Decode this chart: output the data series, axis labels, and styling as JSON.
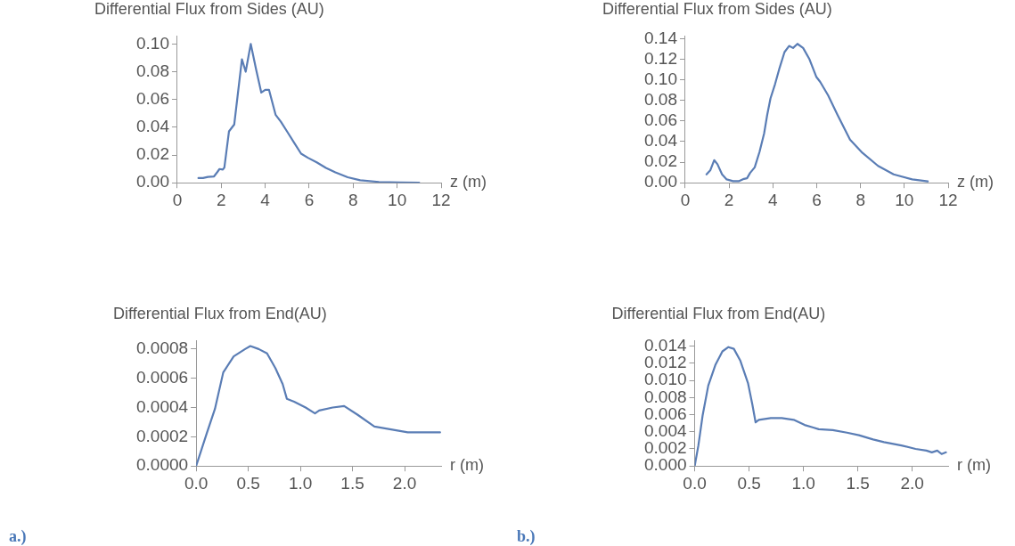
{
  "chart_data": [
    {
      "type": "line",
      "title": "Differential Flux from Sides (AU)",
      "xlabel": "z (m)",
      "xlim": [
        0,
        12
      ],
      "xticks": [
        0,
        2,
        4,
        6,
        8,
        10,
        12
      ],
      "ylim": [
        0,
        0.106
      ],
      "yticks": [
        {
          "value": 0,
          "label": "0.00"
        },
        {
          "value": 0.02,
          "label": "0.02"
        },
        {
          "value": 0.04,
          "label": "0.04"
        },
        {
          "value": 0.06,
          "label": "0.06"
        },
        {
          "value": 0.08,
          "label": "0.08"
        },
        {
          "value": 0.1,
          "label": "0.10"
        }
      ],
      "grid": false,
      "legend": false,
      "marker": "none",
      "line_style": "solid",
      "series": [
        {
          "color": "#5a7db5",
          "x": [
            0.96,
            1.17,
            1.39,
            1.67,
            1.81,
            1.92,
            2.07,
            2.14,
            2.35,
            2.59,
            2.94,
            3.11,
            3.34,
            3.58,
            3.82,
            4.0,
            4.17,
            4.47,
            4.71,
            4.99,
            5.35,
            5.63,
            5.94,
            6.34,
            6.76,
            7.19,
            7.75,
            8.32,
            9.17,
            10.16,
            11.0
          ],
          "values": [
            0.0034,
            0.0034,
            0.0042,
            0.0046,
            0.0075,
            0.0099,
            0.0095,
            0.011,
            0.037,
            0.042,
            0.089,
            0.08,
            0.1,
            0.082,
            0.065,
            0.067,
            0.067,
            0.049,
            0.044,
            0.037,
            0.028,
            0.021,
            0.018,
            0.0147,
            0.0107,
            0.0075,
            0.004,
            0.0018,
            0.0006,
            0.0002,
            0.0001
          ]
        }
      ]
    },
    {
      "type": "line",
      "title": "Differential Flux from Sides (AU)",
      "xlabel": "z (m)",
      "xlim": [
        0,
        12
      ],
      "xticks": [
        0,
        2,
        4,
        6,
        8,
        10,
        12
      ],
      "ylim": [
        0,
        0.143
      ],
      "yticks": [
        {
          "value": 0,
          "label": "0.00"
        },
        {
          "value": 0.02,
          "label": "0.02"
        },
        {
          "value": 0.04,
          "label": "0.04"
        },
        {
          "value": 0.06,
          "label": "0.06"
        },
        {
          "value": 0.08,
          "label": "0.08"
        },
        {
          "value": 0.1,
          "label": "0.10"
        },
        {
          "value": 0.12,
          "label": "0.12"
        },
        {
          "value": 0.14,
          "label": "0.14"
        }
      ],
      "grid": false,
      "legend": false,
      "marker": "none",
      "line_style": "solid",
      "series": [
        {
          "color": "#5a7db5",
          "x": [
            0.97,
            1.14,
            1.32,
            1.47,
            1.68,
            1.89,
            2.18,
            2.46,
            2.68,
            2.82,
            2.96,
            3.17,
            3.39,
            3.6,
            3.74,
            3.89,
            4.1,
            4.31,
            4.53,
            4.74,
            4.92,
            5.12,
            5.38,
            5.67,
            5.98,
            6.16,
            6.52,
            6.95,
            7.52,
            8.09,
            8.8,
            9.51,
            10.36,
            11.07
          ],
          "values": [
            0.0082,
            0.012,
            0.022,
            0.018,
            0.0082,
            0.0033,
            0.0016,
            0.0016,
            0.0038,
            0.0044,
            0.0096,
            0.015,
            0.03,
            0.048,
            0.066,
            0.082,
            0.096,
            0.112,
            0.127,
            0.133,
            0.131,
            0.135,
            0.131,
            0.12,
            0.103,
            0.098,
            0.085,
            0.066,
            0.042,
            0.029,
            0.0164,
            0.0082,
            0.0033,
            0.0014
          ]
        }
      ]
    },
    {
      "type": "line",
      "title": "Differential Flux from End(AU)",
      "xlabel": "r (m)",
      "xlim": [
        0,
        2.35
      ],
      "xticks": [
        {
          "value": 0,
          "label": "0.0"
        },
        {
          "value": 0.5,
          "label": "0.5"
        },
        {
          "value": 1,
          "label": "1.0"
        },
        {
          "value": 1.5,
          "label": "1.5"
        },
        {
          "value": 2,
          "label": "2.0"
        }
      ],
      "ylim": [
        0,
        0.00086
      ],
      "yticks": [
        {
          "value": 0,
          "label": "0.0000"
        },
        {
          "value": 0.0002,
          "label": "0.0002"
        },
        {
          "value": 0.0004,
          "label": "0.0004"
        },
        {
          "value": 0.0006,
          "label": "0.0006"
        },
        {
          "value": 0.0008,
          "label": "0.0008"
        }
      ],
      "grid": false,
      "legend": false,
      "marker": "none",
      "line_style": "solid",
      "annotations": [
        "a.)"
      ],
      "series": [
        {
          "color": "#5a7db5",
          "x": [
            0,
            0.1,
            0.18,
            0.26,
            0.36,
            0.47,
            0.52,
            0.6,
            0.68,
            0.76,
            0.83,
            0.87,
            0.94,
            1.05,
            1.14,
            1.18,
            1.31,
            1.42,
            1.55,
            1.71,
            1.87,
            2.03,
            2.18,
            2.34
          ],
          "values": [
            0,
            0.00022,
            0.00039,
            0.00064,
            0.00075,
            0.0008,
            0.00082,
            0.0008,
            0.00077,
            0.00067,
            0.00056,
            0.00046,
            0.00044,
            0.0004,
            0.00036,
            0.00038,
            0.0004,
            0.00041,
            0.00035,
            0.00027,
            0.00025,
            0.00023,
            0.00023,
            0.00023
          ]
        }
      ]
    },
    {
      "type": "line",
      "title": "Differential Flux from End(AU)",
      "xlabel": "r (m)",
      "xlim": [
        0,
        2.33
      ],
      "xticks": [
        {
          "value": 0,
          "label": "0.0"
        },
        {
          "value": 0.5,
          "label": "0.5"
        },
        {
          "value": 1,
          "label": "1.0"
        },
        {
          "value": 1.5,
          "label": "1.5"
        },
        {
          "value": 2,
          "label": "2.0"
        }
      ],
      "ylim": [
        0,
        0.0147
      ],
      "yticks": [
        {
          "value": 0,
          "label": "0.000"
        },
        {
          "value": 0.002,
          "label": "0.002"
        },
        {
          "value": 0.004,
          "label": "0.004"
        },
        {
          "value": 0.006,
          "label": "0.006"
        },
        {
          "value": 0.008,
          "label": "0.008"
        },
        {
          "value": 0.01,
          "label": "0.010"
        },
        {
          "value": 0.012,
          "label": "0.012"
        },
        {
          "value": 0.014,
          "label": "0.014"
        }
      ],
      "grid": false,
      "legend": false,
      "marker": "none",
      "line_style": "solid",
      "annotations": [
        "b.)"
      ],
      "series": [
        {
          "color": "#5a7db5",
          "x": [
            0,
            0.034,
            0.073,
            0.125,
            0.19,
            0.255,
            0.31,
            0.36,
            0.42,
            0.49,
            0.53,
            0.56,
            0.59,
            0.7,
            0.8,
            0.91,
            1.01,
            1.09,
            1.14,
            1.27,
            1.4,
            1.51,
            1.64,
            1.74,
            1.9,
            2.03,
            2.13,
            2.18,
            2.23,
            2.27,
            2.31
          ],
          "values": [
            0,
            0.0024,
            0.0059,
            0.0094,
            0.0118,
            0.0134,
            0.0139,
            0.0137,
            0.0123,
            0.0097,
            0.0072,
            0.0051,
            0.0054,
            0.0056,
            0.0056,
            0.0054,
            0.0048,
            0.0045,
            0.0043,
            0.0042,
            0.0039,
            0.0036,
            0.0031,
            0.0028,
            0.0024,
            0.002,
            0.0018,
            0.0016,
            0.0018,
            0.0014,
            0.0016
          ]
        }
      ]
    }
  ]
}
